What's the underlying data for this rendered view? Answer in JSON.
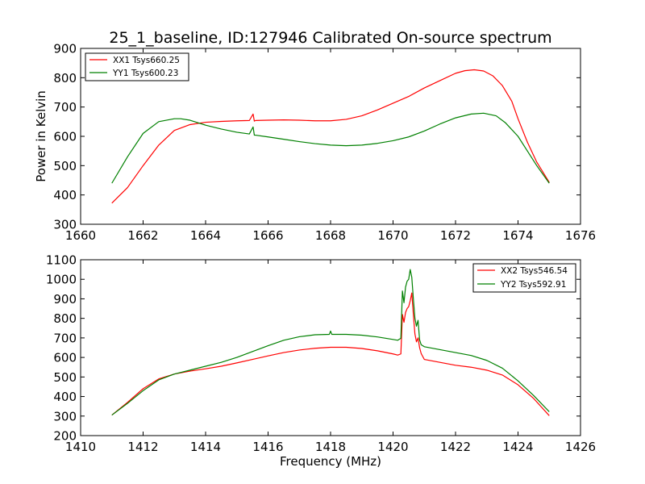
{
  "title": "25_1_baseline, ID:127946 Calibrated On-source spectrum",
  "chart_data": [
    {
      "type": "line",
      "ylabel": "Power in Kelvin",
      "xlabel": "",
      "xlim": [
        1660,
        1676
      ],
      "ylim": [
        300,
        900
      ],
      "xticks": [
        1660,
        1662,
        1664,
        1666,
        1668,
        1670,
        1672,
        1674,
        1676
      ],
      "yticks": [
        300,
        400,
        500,
        600,
        700,
        800,
        900
      ],
      "legend_position": "upper-left",
      "series": [
        {
          "name": "XX1 Tsys660.25",
          "color": "#ff0000",
          "x": [
            1661.0,
            1661.5,
            1662.0,
            1662.5,
            1663.0,
            1663.5,
            1664.0,
            1664.5,
            1665.0,
            1665.4,
            1665.52,
            1665.56,
            1665.6,
            1666.0,
            1666.5,
            1667.0,
            1667.5,
            1668.0,
            1668.5,
            1669.0,
            1669.5,
            1670.0,
            1670.5,
            1671.0,
            1671.5,
            1672.0,
            1672.3,
            1672.6,
            1672.9,
            1673.2,
            1673.5,
            1673.8,
            1674.0,
            1674.3,
            1674.6,
            1675.0
          ],
          "y": [
            372,
            425,
            500,
            570,
            620,
            640,
            648,
            651,
            653,
            654,
            676,
            652,
            654,
            655,
            656,
            655,
            653,
            653,
            658,
            670,
            690,
            713,
            736,
            765,
            790,
            815,
            824,
            827,
            823,
            806,
            773,
            720,
            660,
            580,
            512,
            443
          ]
        },
        {
          "name": "YY1 Tsys600.23",
          "color": "#008000",
          "x": [
            1661.0,
            1661.5,
            1662.0,
            1662.5,
            1663.0,
            1663.2,
            1663.5,
            1664.0,
            1664.5,
            1665.0,
            1665.4,
            1665.52,
            1665.56,
            1665.6,
            1666.0,
            1666.5,
            1667.0,
            1667.5,
            1668.0,
            1668.5,
            1669.0,
            1669.5,
            1670.0,
            1670.5,
            1671.0,
            1671.5,
            1672.0,
            1672.5,
            1672.9,
            1673.3,
            1673.6,
            1674.0,
            1674.3,
            1674.6,
            1675.0
          ],
          "y": [
            440,
            530,
            610,
            650,
            660,
            660,
            655,
            638,
            625,
            614,
            608,
            632,
            604,
            604,
            598,
            590,
            582,
            575,
            570,
            568,
            570,
            576,
            585,
            598,
            618,
            642,
            663,
            676,
            679,
            670,
            646,
            600,
            550,
            500,
            440
          ]
        }
      ]
    },
    {
      "type": "line",
      "ylabel": "",
      "xlabel": "Frequency (MHz)",
      "xlim": [
        1410,
        1426
      ],
      "ylim": [
        200,
        1100
      ],
      "xticks": [
        1410,
        1412,
        1414,
        1416,
        1418,
        1420,
        1422,
        1424,
        1426
      ],
      "yticks": [
        200,
        300,
        400,
        500,
        600,
        700,
        800,
        900,
        1000,
        1100
      ],
      "legend_position": "upper-right",
      "series": [
        {
          "name": "XX2 Tsys546.54",
          "color": "#ff0000",
          "x": [
            1411.0,
            1411.5,
            1412.0,
            1412.5,
            1413.0,
            1413.5,
            1414.0,
            1414.5,
            1415.0,
            1415.5,
            1416.0,
            1416.5,
            1417.0,
            1417.5,
            1418.0,
            1418.5,
            1419.0,
            1419.5,
            1420.0,
            1420.15,
            1420.25,
            1420.3,
            1420.35,
            1420.4,
            1420.45,
            1420.5,
            1420.55,
            1420.6,
            1420.65,
            1420.7,
            1420.75,
            1420.8,
            1420.85,
            1420.9,
            1421.0,
            1421.5,
            1422.0,
            1422.5,
            1423.0,
            1423.5,
            1424.0,
            1424.5,
            1425.0
          ],
          "y": [
            305,
            370,
            440,
            490,
            515,
            530,
            542,
            555,
            572,
            590,
            608,
            625,
            638,
            647,
            652,
            652,
            646,
            634,
            618,
            612,
            618,
            820,
            780,
            830,
            850,
            860,
            890,
            930,
            820,
            720,
            680,
            700,
            650,
            620,
            590,
            575,
            560,
            550,
            535,
            510,
            460,
            390,
            302
          ]
        },
        {
          "name": "YY2 Tsys592.91",
          "color": "#008000",
          "x": [
            1411.0,
            1411.5,
            1412.0,
            1412.5,
            1413.0,
            1413.5,
            1414.0,
            1414.5,
            1415.0,
            1415.5,
            1416.0,
            1416.5,
            1417.0,
            1417.5,
            1417.96,
            1418.0,
            1418.04,
            1418.5,
            1419.0,
            1419.5,
            1420.0,
            1420.15,
            1420.25,
            1420.3,
            1420.35,
            1420.4,
            1420.45,
            1420.5,
            1420.55,
            1420.6,
            1420.65,
            1420.7,
            1420.75,
            1420.8,
            1420.85,
            1420.9,
            1421.0,
            1421.5,
            1422.0,
            1422.5,
            1423.0,
            1423.5,
            1424.0,
            1424.5,
            1425.0
          ],
          "y": [
            305,
            365,
            430,
            485,
            515,
            535,
            555,
            575,
            600,
            630,
            660,
            688,
            706,
            716,
            718,
            735,
            718,
            718,
            714,
            705,
            692,
            688,
            698,
            940,
            880,
            960,
            990,
            1000,
            1050,
            1010,
            900,
            800,
            760,
            790,
            690,
            665,
            655,
            640,
            625,
            610,
            585,
            545,
            480,
            405,
            322
          ]
        }
      ]
    }
  ]
}
